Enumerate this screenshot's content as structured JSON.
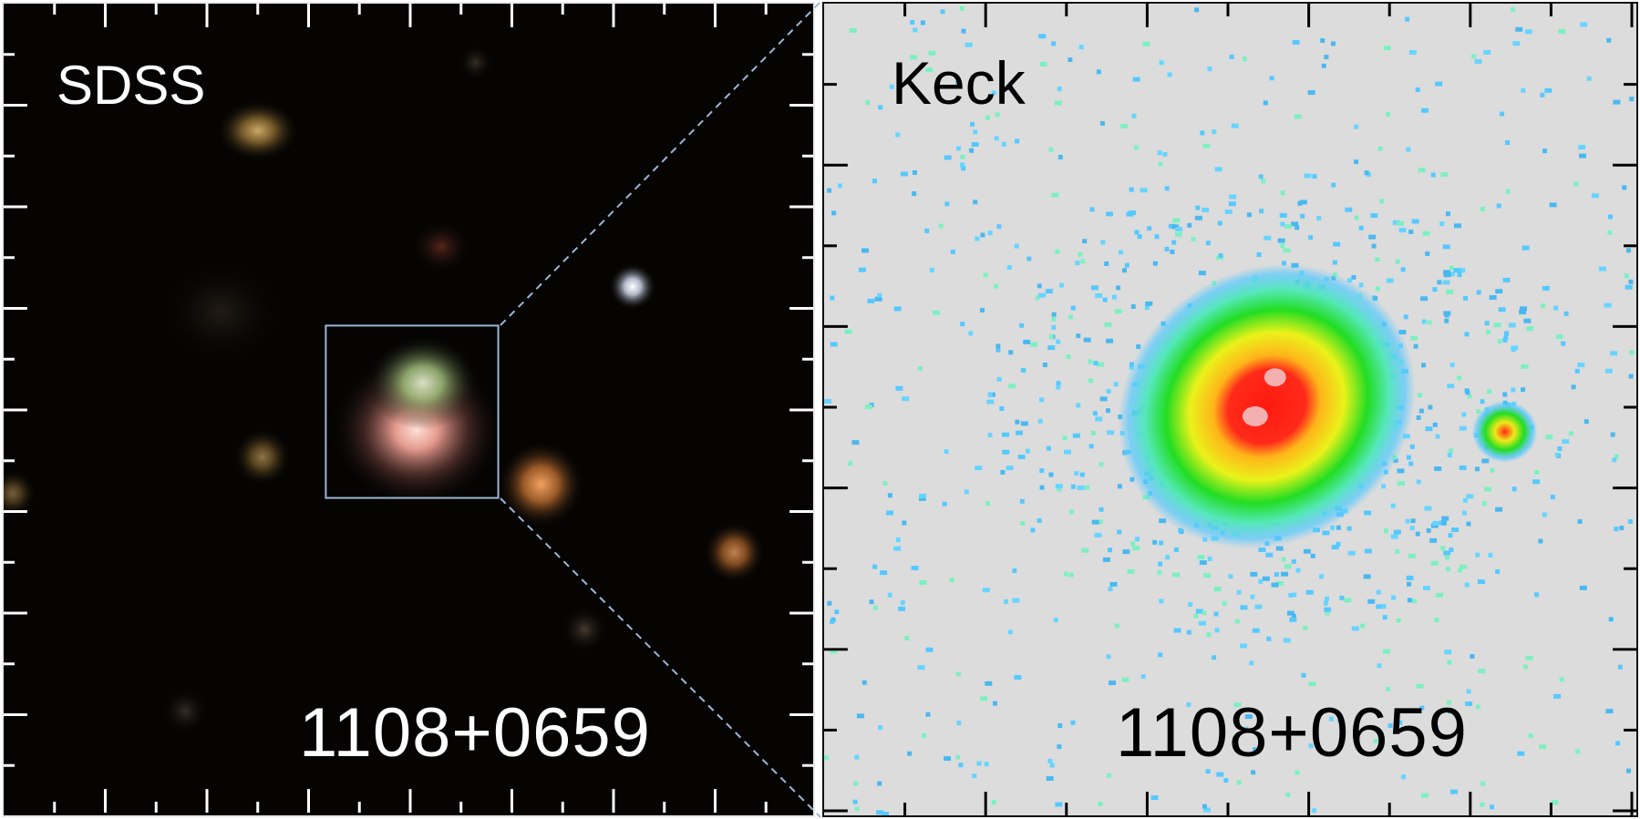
{
  "figure": {
    "left_panel": {
      "survey_label": "SDSS",
      "object_label": "1108+0659",
      "zoom_box_color": "#9fb6d6",
      "background_color": "#050403"
    },
    "right_panel": {
      "survey_label": "Keck",
      "object_label": "1108+0659",
      "background_color": "#dcdcdc",
      "colormap": [
        "#55c8ff",
        "#7cf0c0",
        "#22dd22",
        "#eaf21a",
        "#ffd51a",
        "#ff2a1a",
        "#f4b0b0"
      ]
    },
    "connector_color": "#9fb6d6"
  }
}
